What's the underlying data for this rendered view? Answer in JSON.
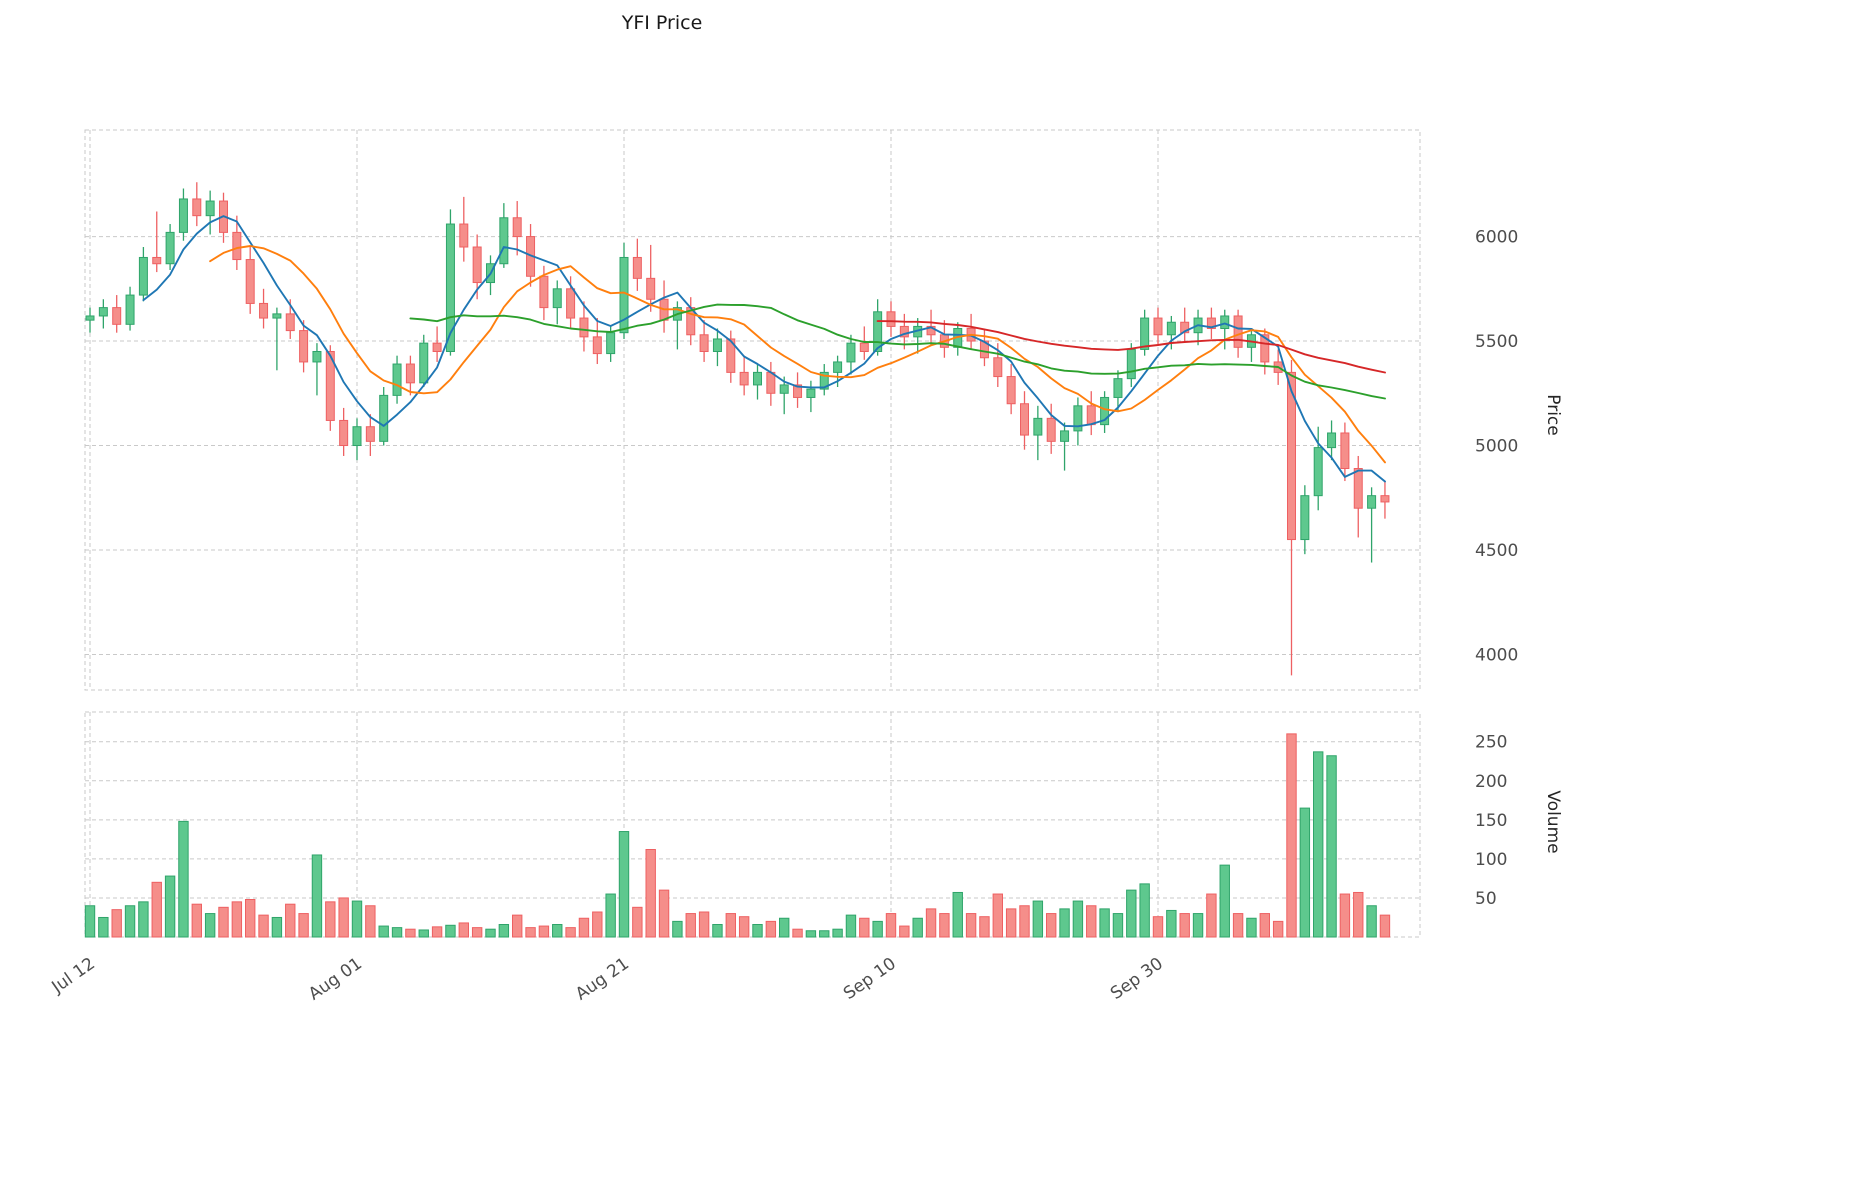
{
  "title": "YFI Price",
  "axes": {
    "price_label": "Price",
    "volume_label": "Volume",
    "price_ticks": [
      4000,
      4500,
      5000,
      5500,
      6000
    ],
    "volume_ticks": [
      50,
      100,
      150,
      200,
      250
    ],
    "x_ticks": [
      {
        "label": "Jul 12",
        "day": 0
      },
      {
        "label": "Aug 01",
        "day": 20
      },
      {
        "label": "Aug 21",
        "day": 40
      },
      {
        "label": "Sep 10",
        "day": 60
      },
      {
        "label": "Sep 30",
        "day": 80
      }
    ]
  },
  "chart_data": {
    "type": "candlestick",
    "title": "YFI Price",
    "ylabel_price": "Price",
    "ylabel_volume": "Volume",
    "grid": true,
    "legend": "none",
    "columns": [
      "date",
      "open",
      "high",
      "low",
      "close",
      "volume"
    ],
    "rows": [
      [
        "Jul 12",
        5600,
        5660,
        5540,
        5620,
        40
      ],
      [
        "Jul 13",
        5620,
        5700,
        5560,
        5660,
        25
      ],
      [
        "Jul 14",
        5660,
        5720,
        5540,
        5580,
        35
      ],
      [
        "Jul 15",
        5580,
        5760,
        5550,
        5720,
        40
      ],
      [
        "Jul 16",
        5720,
        5950,
        5690,
        5900,
        45
      ],
      [
        "Jul 17",
        5900,
        6120,
        5830,
        5870,
        70
      ],
      [
        "Jul 18",
        5870,
        6060,
        5840,
        6020,
        78
      ],
      [
        "Jul 19",
        6020,
        6230,
        5980,
        6180,
        148
      ],
      [
        "Jul 20",
        6180,
        6260,
        6050,
        6100,
        42
      ],
      [
        "Jul 21",
        6100,
        6220,
        6010,
        6170,
        30
      ],
      [
        "Jul 22",
        6170,
        6210,
        5970,
        6020,
        38
      ],
      [
        "Jul 23",
        6020,
        6100,
        5840,
        5890,
        45
      ],
      [
        "Jul 24",
        5890,
        5950,
        5630,
        5680,
        48
      ],
      [
        "Jul 25",
        5680,
        5750,
        5560,
        5610,
        28
      ],
      [
        "Jul 26",
        5610,
        5660,
        5360,
        5630,
        25
      ],
      [
        "Jul 27",
        5630,
        5700,
        5510,
        5550,
        42
      ],
      [
        "Jul 28",
        5550,
        5600,
        5350,
        5400,
        30
      ],
      [
        "Jul 29",
        5400,
        5490,
        5240,
        5450,
        105
      ],
      [
        "Jul 30",
        5450,
        5480,
        5070,
        5120,
        45
      ],
      [
        "Jul 31",
        5120,
        5180,
        4950,
        5000,
        50
      ],
      [
        "Aug 01",
        5000,
        5130,
        4930,
        5090,
        46
      ],
      [
        "Aug 02",
        5090,
        5150,
        4950,
        5020,
        40
      ],
      [
        "Aug 03",
        5020,
        5280,
        5000,
        5240,
        14
      ],
      [
        "Aug 04",
        5240,
        5430,
        5200,
        5390,
        12
      ],
      [
        "Aug 05",
        5390,
        5430,
        5240,
        5300,
        10
      ],
      [
        "Aug 06",
        5300,
        5530,
        5280,
        5490,
        9
      ],
      [
        "Aug 07",
        5490,
        5570,
        5400,
        5450,
        13
      ],
      [
        "Aug 08",
        5450,
        6130,
        5430,
        6060,
        15
      ],
      [
        "Aug 09",
        6060,
        6190,
        5880,
        5950,
        18
      ],
      [
        "Aug 10",
        5950,
        6010,
        5700,
        5780,
        12
      ],
      [
        "Aug 11",
        5780,
        5910,
        5720,
        5870,
        10
      ],
      [
        "Aug 12",
        5870,
        6160,
        5850,
        6090,
        16
      ],
      [
        "Aug 13",
        6090,
        6170,
        5910,
        6000,
        28
      ],
      [
        "Aug 14",
        6000,
        6060,
        5760,
        5810,
        12
      ],
      [
        "Aug 15",
        5810,
        5860,
        5600,
        5660,
        14
      ],
      [
        "Aug 16",
        5660,
        5790,
        5580,
        5750,
        16
      ],
      [
        "Aug 17",
        5750,
        5810,
        5560,
        5610,
        12
      ],
      [
        "Aug 18",
        5610,
        5690,
        5450,
        5520,
        24
      ],
      [
        "Aug 19",
        5520,
        5610,
        5390,
        5440,
        32
      ],
      [
        "Aug 20",
        5440,
        5570,
        5400,
        5540,
        55
      ],
      [
        "Aug 21",
        5540,
        5970,
        5510,
        5900,
        135
      ],
      [
        "Aug 22",
        5900,
        5990,
        5740,
        5800,
        38
      ],
      [
        "Aug 23",
        5800,
        5960,
        5640,
        5700,
        112
      ],
      [
        "Aug 24",
        5700,
        5790,
        5540,
        5600,
        60
      ],
      [
        "Aug 25",
        5600,
        5690,
        5460,
        5660,
        20
      ],
      [
        "Aug 26",
        5660,
        5710,
        5480,
        5530,
        30
      ],
      [
        "Aug 27",
        5530,
        5600,
        5400,
        5450,
        32
      ],
      [
        "Aug 28",
        5450,
        5560,
        5380,
        5510,
        16
      ],
      [
        "Aug 29",
        5510,
        5550,
        5300,
        5350,
        30
      ],
      [
        "Aug 30",
        5350,
        5430,
        5240,
        5290,
        26
      ],
      [
        "Aug 31",
        5290,
        5390,
        5220,
        5350,
        16
      ],
      [
        "Sep 01",
        5350,
        5400,
        5190,
        5250,
        20
      ],
      [
        "Sep 02",
        5250,
        5330,
        5150,
        5290,
        24
      ],
      [
        "Sep 03",
        5290,
        5350,
        5180,
        5230,
        10
      ],
      [
        "Sep 04",
        5230,
        5310,
        5160,
        5270,
        8
      ],
      [
        "Sep 05",
        5270,
        5390,
        5240,
        5350,
        8
      ],
      [
        "Sep 06",
        5350,
        5430,
        5280,
        5400,
        10
      ],
      [
        "Sep 07",
        5400,
        5530,
        5340,
        5490,
        28
      ],
      [
        "Sep 08",
        5490,
        5570,
        5410,
        5450,
        24
      ],
      [
        "Sep 09",
        5450,
        5700,
        5430,
        5640,
        20
      ],
      [
        "Sep 10",
        5640,
        5690,
        5520,
        5570,
        30
      ],
      [
        "Sep 11",
        5570,
        5630,
        5460,
        5520,
        14
      ],
      [
        "Sep 12",
        5520,
        5610,
        5440,
        5570,
        24
      ],
      [
        "Sep 13",
        5570,
        5650,
        5480,
        5530,
        36
      ],
      [
        "Sep 14",
        5530,
        5600,
        5420,
        5470,
        30
      ],
      [
        "Sep 15",
        5470,
        5590,
        5430,
        5560,
        57
      ],
      [
        "Sep 16",
        5560,
        5630,
        5460,
        5500,
        30
      ],
      [
        "Sep 17",
        5500,
        5560,
        5380,
        5420,
        26
      ],
      [
        "Sep 18",
        5420,
        5490,
        5280,
        5330,
        55
      ],
      [
        "Sep 19",
        5330,
        5390,
        5150,
        5200,
        36
      ],
      [
        "Sep 20",
        5200,
        5260,
        4980,
        5050,
        40
      ],
      [
        "Sep 21",
        5050,
        5190,
        4930,
        5130,
        46
      ],
      [
        "Sep 22",
        5130,
        5200,
        4960,
        5020,
        30
      ],
      [
        "Sep 23",
        5020,
        5110,
        4880,
        5070,
        36
      ],
      [
        "Sep 24",
        5070,
        5230,
        5000,
        5190,
        46
      ],
      [
        "Sep 25",
        5190,
        5260,
        5050,
        5100,
        40
      ],
      [
        "Sep 26",
        5100,
        5260,
        5060,
        5230,
        36
      ],
      [
        "Sep 27",
        5230,
        5360,
        5160,
        5320,
        30
      ],
      [
        "Sep 28",
        5320,
        5490,
        5280,
        5460,
        60
      ],
      [
        "Sep 29",
        5460,
        5650,
        5430,
        5610,
        68
      ],
      [
        "Sep 30",
        5610,
        5660,
        5480,
        5530,
        26
      ],
      [
        "Oct 01",
        5530,
        5620,
        5460,
        5590,
        34
      ],
      [
        "Oct 02",
        5590,
        5660,
        5500,
        5540,
        30
      ],
      [
        "Oct 03",
        5540,
        5650,
        5480,
        5610,
        30
      ],
      [
        "Oct 04",
        5610,
        5660,
        5510,
        5560,
        55
      ],
      [
        "Oct 05",
        5560,
        5650,
        5460,
        5620,
        92
      ],
      [
        "Oct 06",
        5620,
        5650,
        5420,
        5470,
        30
      ],
      [
        "Oct 07",
        5470,
        5560,
        5400,
        5530,
        24
      ],
      [
        "Oct 08",
        5530,
        5560,
        5340,
        5400,
        30
      ],
      [
        "Oct 09",
        5400,
        5460,
        5290,
        5350,
        20
      ],
      [
        "Oct 10",
        5350,
        5410,
        3900,
        4550,
        260
      ],
      [
        "Oct 11",
        4550,
        4810,
        4480,
        4760,
        165
      ],
      [
        "Oct 12",
        4760,
        5090,
        4690,
        4990,
        237
      ],
      [
        "Oct 13",
        4990,
        5120,
        4930,
        5060,
        232
      ],
      [
        "Oct 14",
        5060,
        5110,
        4830,
        4890,
        55
      ],
      [
        "Oct 15",
        4890,
        4950,
        4560,
        4700,
        57
      ],
      [
        "Oct 16",
        4700,
        4800,
        4440,
        4760,
        40
      ],
      [
        "Oct 17",
        4760,
        4830,
        4650,
        4730,
        28
      ]
    ],
    "moving_averages": [
      {
        "window": 5,
        "color": "#1f77b4"
      },
      {
        "window": 10,
        "color": "#ff7f0e"
      },
      {
        "window": 25,
        "color": "#2ca02c"
      },
      {
        "window": 60,
        "color": "#d62728"
      }
    ],
    "colors": {
      "up_fill": "#5ec88e",
      "up_edge": "#2fa46a",
      "down_fill": "#f58e8a",
      "down_edge": "#ee6062"
    },
    "price_axis": {
      "ticks": [
        4000,
        4500,
        5000,
        5500,
        6000
      ],
      "range": [
        3830,
        6510
      ]
    },
    "volume_axis": {
      "ticks": [
        50,
        100,
        150,
        200,
        250
      ],
      "range": [
        0,
        288
      ]
    }
  }
}
